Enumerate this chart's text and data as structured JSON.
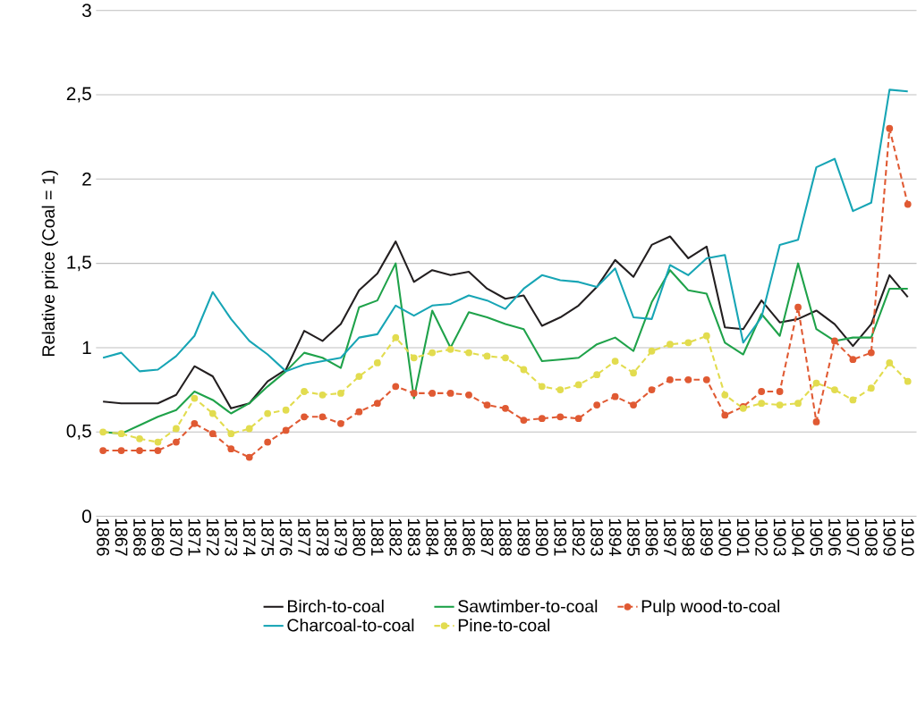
{
  "chart_data": {
    "type": "line",
    "ylabel": "Relative price (Coal = 1)",
    "categories": [
      "1866",
      "1867",
      "1868",
      "1869",
      "1870",
      "1871",
      "1872",
      "1873",
      "1874",
      "1875",
      "1876",
      "1877",
      "1878",
      "1879",
      "1880",
      "1881",
      "1882",
      "1883",
      "1884",
      "1885",
      "1886",
      "1887",
      "1888",
      "1889",
      "1890",
      "1891",
      "1892",
      "1893",
      "1894",
      "1895",
      "1896",
      "1897",
      "1898",
      "1899",
      "1900",
      "1901",
      "1902",
      "1903",
      "1904",
      "1905",
      "1906",
      "1907",
      "1908",
      "1909",
      "1910"
    ],
    "series": [
      {
        "name": "Birch-to-coal",
        "color": "#231f20",
        "marker": "none",
        "line_style": "solid",
        "values": [
          0.68,
          0.67,
          0.67,
          0.67,
          0.72,
          0.89,
          0.83,
          0.64,
          0.67,
          0.8,
          0.87,
          1.1,
          1.04,
          1.14,
          1.34,
          1.44,
          1.63,
          1.39,
          1.46,
          1.43,
          1.45,
          1.35,
          1.29,
          1.31,
          1.13,
          1.18,
          1.25,
          1.36,
          1.52,
          1.42,
          1.61,
          1.66,
          1.53,
          1.6,
          1.12,
          1.11,
          1.28,
          1.15,
          1.17,
          1.22,
          1.14,
          1.01,
          1.14,
          1.43,
          1.3
        ]
      },
      {
        "name": "Sawtimber-to-coal",
        "color": "#1fa24a",
        "marker": "none",
        "line_style": "solid",
        "values": [
          0.5,
          0.49,
          0.54,
          0.59,
          0.63,
          0.74,
          0.69,
          0.61,
          0.67,
          0.77,
          0.86,
          0.97,
          0.94,
          0.88,
          1.24,
          1.28,
          1.5,
          0.7,
          1.22,
          1.0,
          1.21,
          1.18,
          1.14,
          1.11,
          0.92,
          0.93,
          0.94,
          1.02,
          1.06,
          0.98,
          1.27,
          1.46,
          1.34,
          1.32,
          1.03,
          0.96,
          1.2,
          1.07,
          1.5,
          1.11,
          1.04,
          1.06,
          1.06,
          1.35,
          1.35
        ]
      },
      {
        "name": "Pulp wood-to-coal",
        "color": "#e05a33",
        "marker": "circle",
        "line_style": "dashed",
        "values": [
          0.39,
          0.39,
          0.39,
          0.39,
          0.44,
          0.55,
          0.49,
          0.4,
          0.35,
          0.44,
          0.51,
          0.59,
          0.59,
          0.55,
          0.62,
          0.67,
          0.77,
          0.73,
          0.73,
          0.73,
          0.72,
          0.66,
          0.64,
          0.57,
          0.58,
          0.59,
          0.58,
          0.66,
          0.71,
          0.66,
          0.75,
          0.81,
          0.81,
          0.81,
          0.6,
          0.65,
          0.74,
          0.74,
          1.24,
          0.56,
          1.04,
          0.93,
          0.97,
          2.3,
          1.85
        ]
      },
      {
        "name": "Charcoal-to-coal",
        "color": "#17a5b5",
        "marker": "none",
        "line_style": "solid",
        "values": [
          0.94,
          0.97,
          0.86,
          0.87,
          0.95,
          1.07,
          1.33,
          1.17,
          1.04,
          0.96,
          0.86,
          0.9,
          0.92,
          0.94,
          1.06,
          1.08,
          1.25,
          1.19,
          1.25,
          1.26,
          1.31,
          1.28,
          1.23,
          1.35,
          1.43,
          1.4,
          1.39,
          1.36,
          1.47,
          1.18,
          1.17,
          1.49,
          1.43,
          1.53,
          1.55,
          1.03,
          1.18,
          1.61,
          1.64,
          2.07,
          2.12,
          1.81,
          1.86,
          2.53,
          2.52
        ]
      },
      {
        "name": "Pine-to-coal",
        "color": "#e2dc4f",
        "marker": "circle",
        "line_style": "dashed",
        "values": [
          0.5,
          0.49,
          0.46,
          0.44,
          0.52,
          0.7,
          0.61,
          0.49,
          0.52,
          0.61,
          0.63,
          0.74,
          0.72,
          0.73,
          0.83,
          0.91,
          1.06,
          0.94,
          0.97,
          0.99,
          0.97,
          0.95,
          0.94,
          0.87,
          0.77,
          0.75,
          0.78,
          0.84,
          0.92,
          0.85,
          0.98,
          1.02,
          1.03,
          1.07,
          0.72,
          0.64,
          0.67,
          0.66,
          0.67,
          0.79,
          0.75,
          0.69,
          0.76,
          0.91,
          0.8
        ]
      }
    ],
    "ylim": [
      0,
      3
    ],
    "yticks": [
      0,
      {
        "value": 0.5,
        "label": "0,5"
      },
      1,
      {
        "value": 1.5,
        "label": "1,5"
      },
      2,
      {
        "value": 2.5,
        "label": "2,5"
      },
      3
    ],
    "grid": "y",
    "legend": "bottom"
  }
}
